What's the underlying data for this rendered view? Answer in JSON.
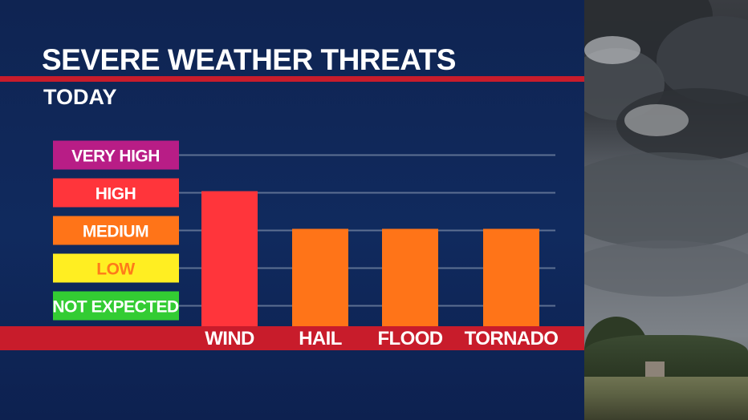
{
  "header": {
    "title": "SEVERE WEATHER THREATS",
    "subtitle": "TODAY"
  },
  "colors": {
    "not_expected": "#33cc33",
    "low": "#ffee22",
    "medium": "#ff7418",
    "high": "#ff353b",
    "very_high": "#b81d86",
    "accent_red": "#c81c2b",
    "panel_bg": "#0f2554"
  },
  "chart_data": {
    "type": "bar",
    "title": "SEVERE WEATHER THREATS",
    "subtitle": "TODAY",
    "levels": [
      {
        "label": "NOT EXPECTED",
        "color": "#33cc33",
        "text_color": "#ffffff"
      },
      {
        "label": "LOW",
        "color": "#ffee22",
        "text_color": "#ff7a1a"
      },
      {
        "label": "MEDIUM",
        "color": "#ff7418",
        "text_color": "#ffffff"
      },
      {
        "label": "HIGH",
        "color": "#ff353b",
        "text_color": "#ffffff"
      },
      {
        "label": "VERY HIGH",
        "color": "#b81d86",
        "text_color": "#ffffff"
      }
    ],
    "categories": [
      "WIND",
      "HAIL",
      "FLOOD",
      "TORNADO"
    ],
    "values": [
      4,
      3,
      3,
      3
    ],
    "bar_colors": [
      "#ff353b",
      "#ff7418",
      "#ff7418",
      "#ff7418"
    ],
    "ylim": [
      0,
      5
    ],
    "grid": true
  }
}
